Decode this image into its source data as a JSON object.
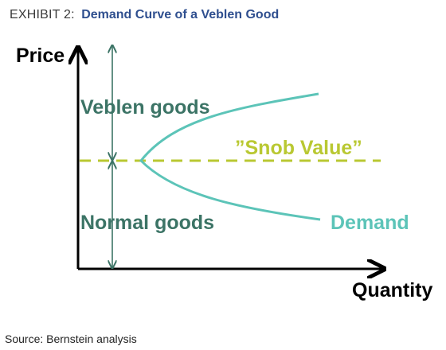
{
  "header": {
    "exhibit_label": "EXHIBIT 2:",
    "title": "Demand Curve of a Veblen Good"
  },
  "diagram": {
    "y_axis_label": "Price",
    "x_axis_label": "Quantity",
    "upper_region_label": "Veblen goods",
    "lower_region_label": "Normal goods",
    "threshold_label": "”Snob Value”",
    "curve_label": "Demand"
  },
  "colors": {
    "axis": "#000000",
    "region_text": "#3c7466",
    "region_arrow": "#3c7466",
    "curve": "#5cc4b8",
    "threshold": "#b9c832",
    "title": "#2f4f8f"
  },
  "footer": {
    "source": "Source: Bernstein analysis"
  }
}
